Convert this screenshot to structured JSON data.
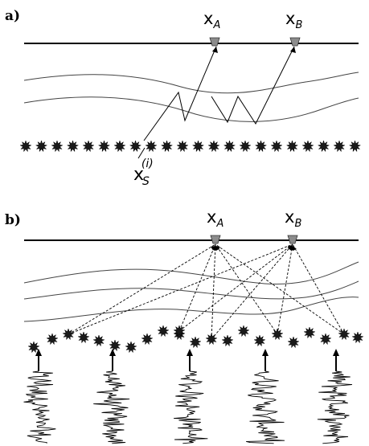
{
  "panel_a": {
    "label": "a)",
    "receiver_a": {
      "main": "x",
      "sub": "A"
    },
    "receiver_b": {
      "main": "x",
      "sub": "B"
    },
    "source_label": {
      "main": "x",
      "sub": "S",
      "sup": "(i)"
    }
  },
  "panel_b": {
    "label": "b)",
    "receiver_a": {
      "main": "x",
      "sub": "A"
    },
    "receiver_b": {
      "main": "x",
      "sub": "B"
    }
  },
  "colors": {
    "ink": "#000000",
    "receiver_fill": "#8c8c8c",
    "source_fill": "#1a1a1a",
    "layer_line": "#444444"
  }
}
